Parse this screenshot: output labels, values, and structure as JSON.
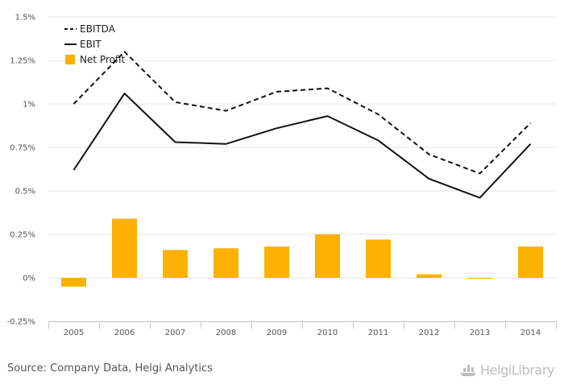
{
  "chart_data": {
    "type": "bar",
    "categories": [
      "2005",
      "2006",
      "2007",
      "2008",
      "2009",
      "2010",
      "2011",
      "2012",
      "2013",
      "2014"
    ],
    "y_ticks": [
      "1.5%",
      "1.25%",
      "1%",
      "0.75%",
      "0.5%",
      "0.25%",
      "0%",
      "-0.25%"
    ],
    "ylim": [
      -0.25,
      1.5
    ],
    "grid": true,
    "legend_position": "top-left",
    "series": [
      {
        "name": "EBITDA",
        "type": "line",
        "style": "dashed",
        "color": "#111111",
        "values": [
          1.0,
          1.3,
          1.01,
          0.96,
          1.07,
          1.09,
          0.94,
          0.71,
          0.6,
          0.89
        ]
      },
      {
        "name": "EBIT",
        "type": "line",
        "style": "solid",
        "color": "#111111",
        "values": [
          0.62,
          1.06,
          0.78,
          0.77,
          0.86,
          0.93,
          0.79,
          0.57,
          0.46,
          0.77
        ]
      },
      {
        "name": "Net Profit",
        "type": "bar",
        "color": "#FCB103",
        "values": [
          -0.05,
          0.34,
          0.16,
          0.17,
          0.18,
          0.25,
          0.22,
          0.02,
          -0.005,
          0.18
        ]
      }
    ]
  },
  "footer": {
    "source": "Source: Company Data, Helgi Analytics",
    "brand": "HelgiLibrary"
  }
}
